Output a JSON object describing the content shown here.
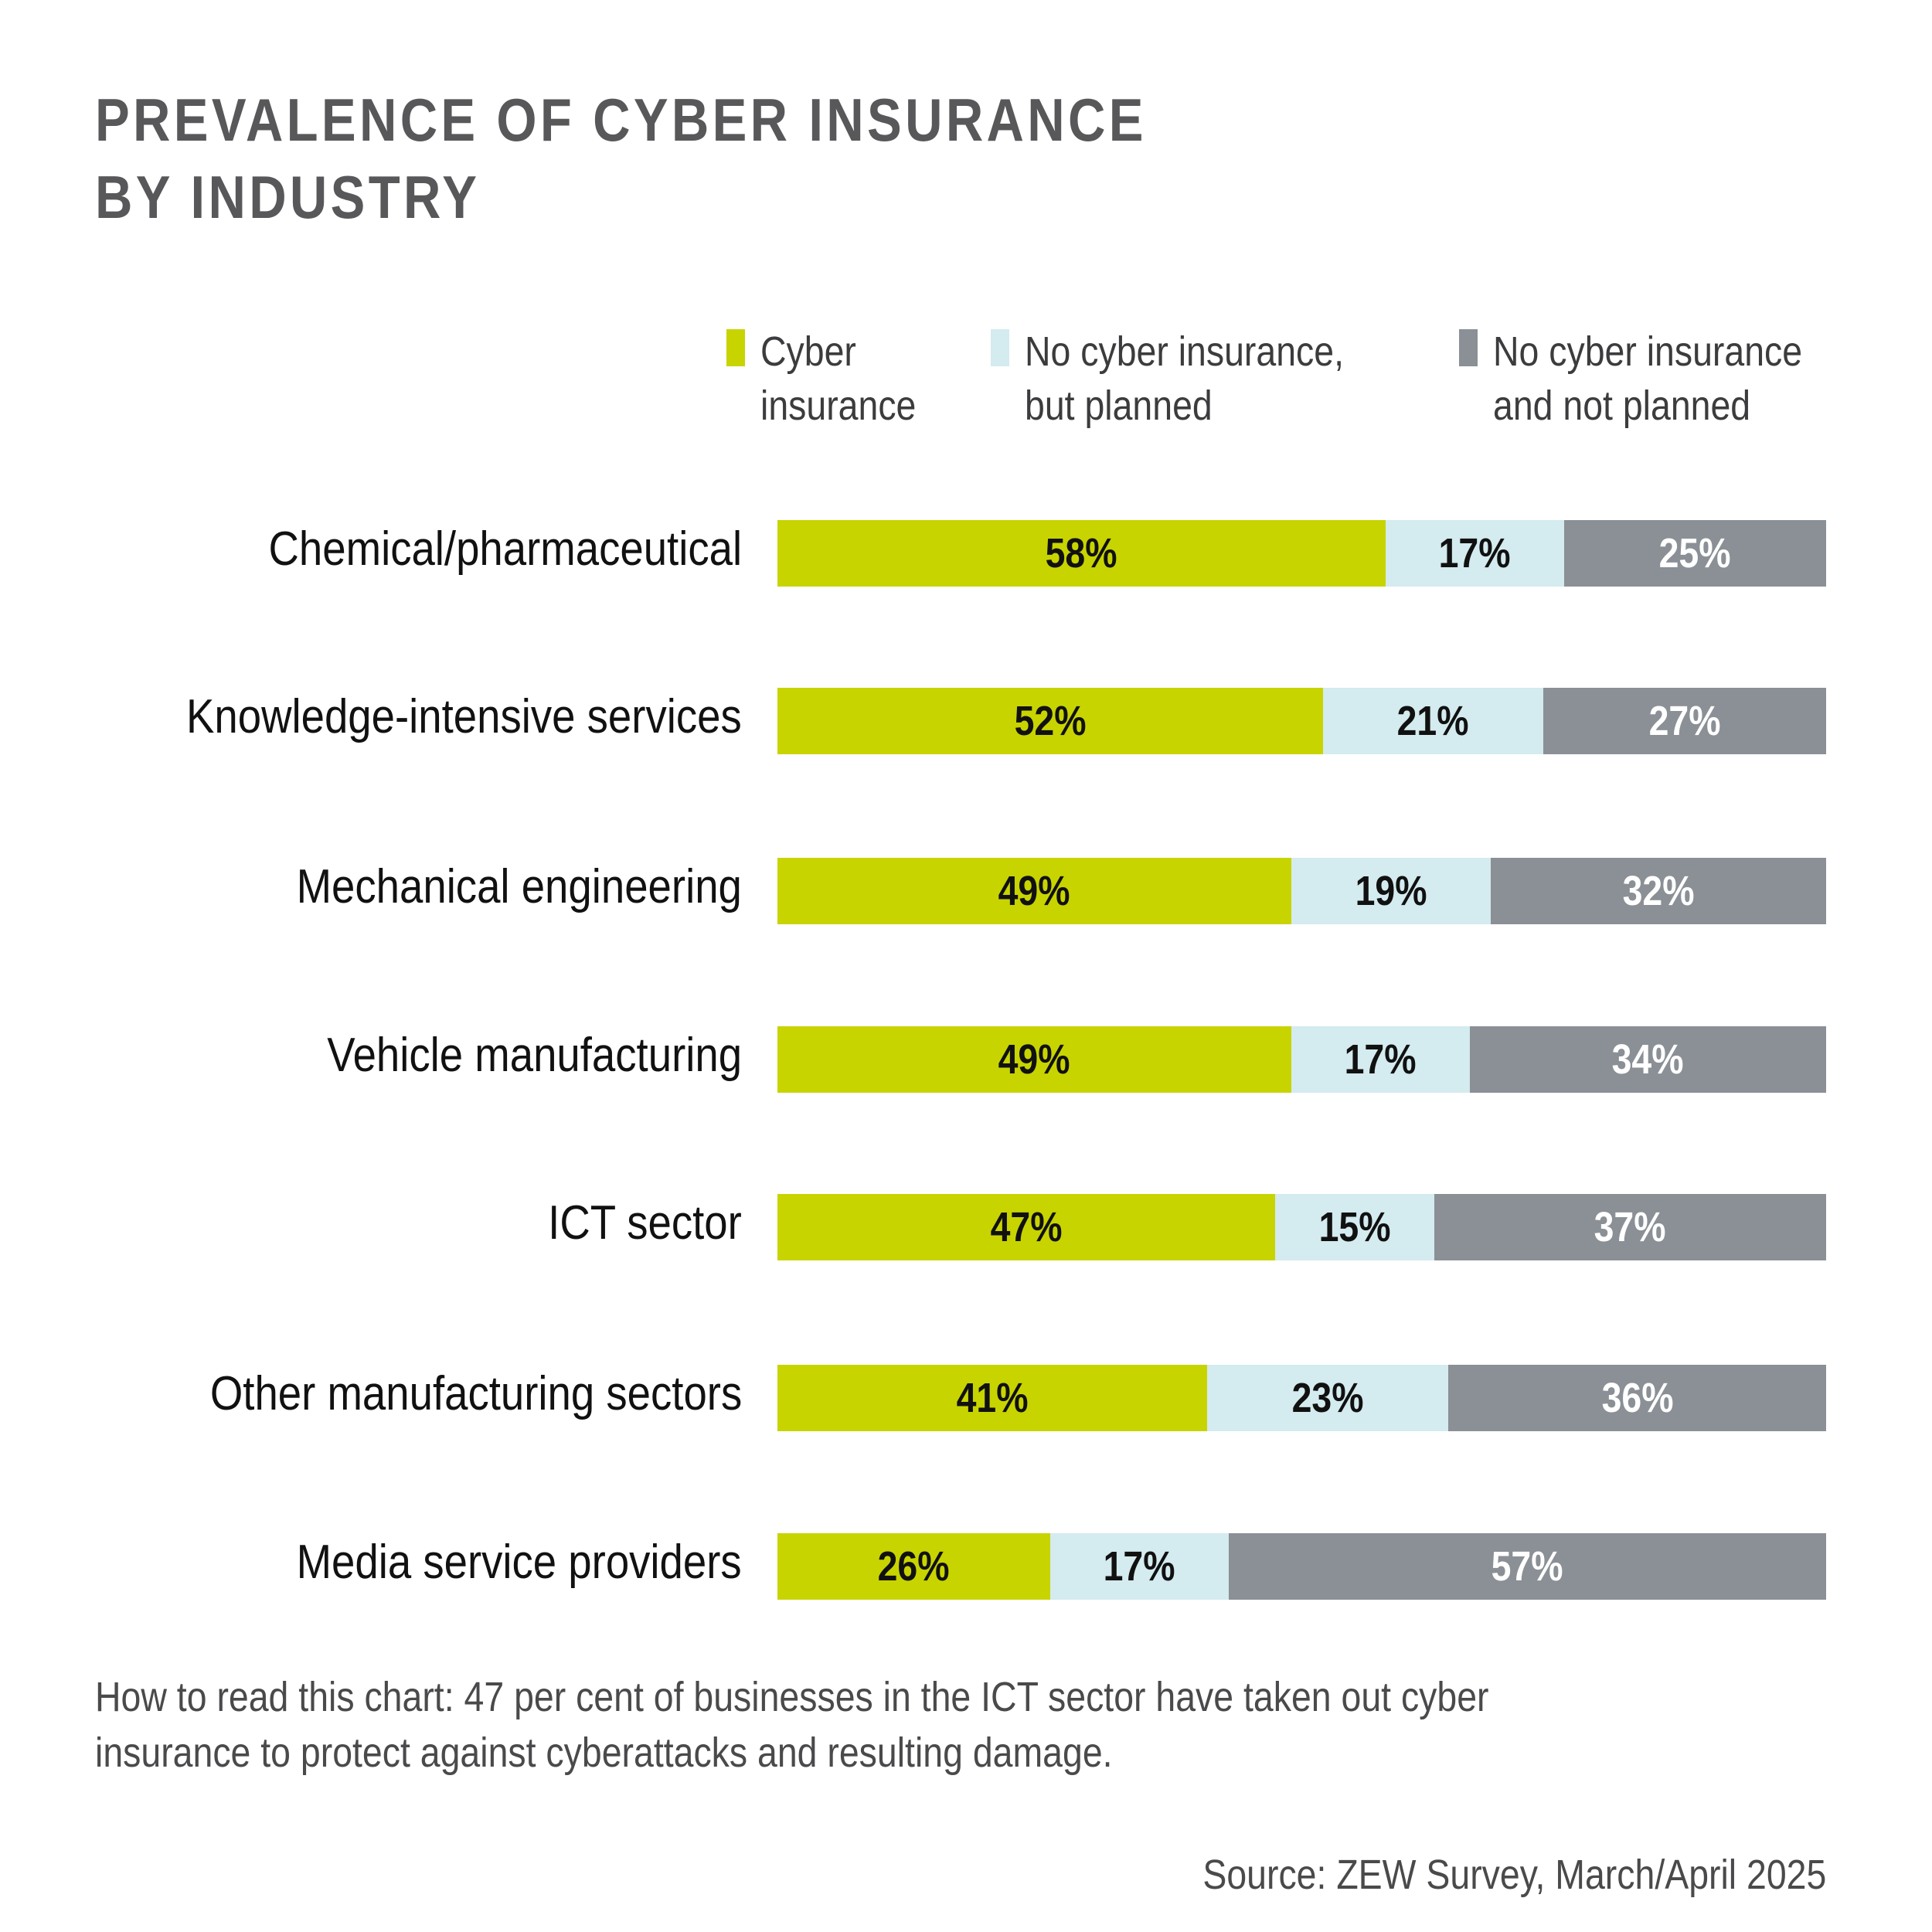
{
  "chart_data": {
    "type": "bar",
    "orientation": "horizontal",
    "stacked": true,
    "title": "PREVALENCE OF CYBER INSURANCE BY INDUSTRY",
    "title_lines": [
      "PREVALENCE OF CYBER INSURANCE",
      "BY INDUSTRY"
    ],
    "xlabel": "",
    "ylabel": "",
    "xlim": [
      0,
      100
    ],
    "unit": "%",
    "grid": false,
    "legend_position": "top-right",
    "categories": [
      "Chemical/pharmaceutical",
      "Knowledge-intensive services",
      "Mechanical engineering",
      "Vehicle manufacturing",
      "ICT sector",
      "Other manufacturing sectors",
      "Media service providers"
    ],
    "series": [
      {
        "name": "Cyber insurance",
        "legend_label": "Cyber\ninsurance",
        "color": "#c8d400",
        "label_color": "#111111",
        "values": [
          58,
          52,
          49,
          49,
          47,
          41,
          26
        ]
      },
      {
        "name": "No cyber insurance, but planned",
        "legend_label": "No cyber insurance,\nbut planned",
        "color": "#d4ebef",
        "label_color": "#111111",
        "values": [
          17,
          21,
          19,
          17,
          15,
          23,
          17
        ]
      },
      {
        "name": "No cyber insurance and not planned",
        "legend_label": "No cyber insurance\nand not planned",
        "color": "#8a9095",
        "label_color": "#ffffff",
        "values": [
          25,
          27,
          32,
          34,
          37,
          36,
          57
        ]
      }
    ],
    "note": "How to read this chart: 47 per cent of businesses in the ICT sector have taken out cyber insurance to protect against cyberattacks and resulting damage.",
    "source": "Source: ZEW Survey, March/April 2025"
  }
}
